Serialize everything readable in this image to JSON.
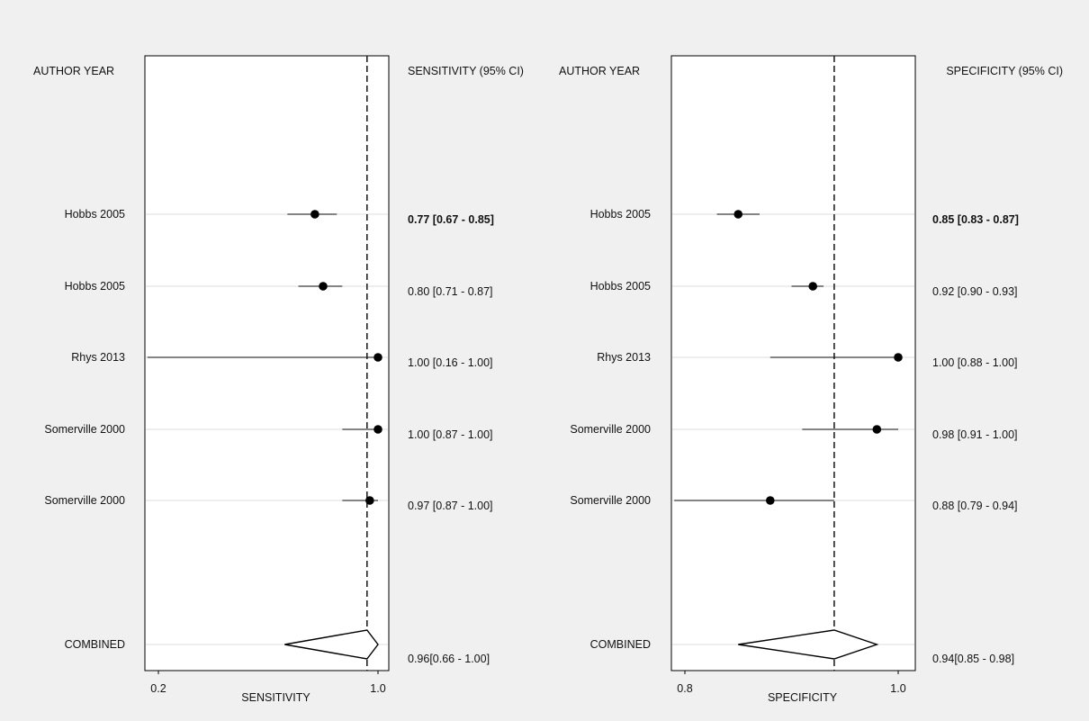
{
  "chart_data": [
    {
      "type": "forest",
      "name": "sensitivity",
      "xlabel": "SENSITIVITY",
      "study_header": "AUTHOR YEAR",
      "estimate_header": "SENSITIVITY (95% CI)",
      "xlim": [
        0.2,
        1.0
      ],
      "xticks": [
        0.2,
        1.0
      ],
      "xtick_labels": [
        "0.2",
        "1.0"
      ],
      "reference_line": 0.96,
      "studies": [
        {
          "label": "Hobbs 2005",
          "estimate": 0.77,
          "lower": 0.67,
          "upper": 0.85,
          "text": "0.77 [0.67 - 0.85]"
        },
        {
          "label": "Hobbs 2005",
          "estimate": 0.8,
          "lower": 0.71,
          "upper": 0.87,
          "text": "0.80 [0.71 - 0.87]"
        },
        {
          "label": "Rhys 2013",
          "estimate": 1.0,
          "lower": 0.16,
          "upper": 1.0,
          "text": "1.00 [0.16 - 1.00]"
        },
        {
          "label": "Somerville 2000",
          "estimate": 1.0,
          "lower": 0.87,
          "upper": 1.0,
          "text": "1.00 [0.87 - 1.00]"
        },
        {
          "label": "Somerville 2000",
          "estimate": 0.97,
          "lower": 0.87,
          "upper": 1.0,
          "text": "0.97 [0.87 - 1.00]"
        }
      ],
      "combined": {
        "label": "COMBINED",
        "estimate": 0.96,
        "lower": 0.66,
        "upper": 1.0,
        "text": "0.96[0.66 - 1.00]"
      }
    },
    {
      "type": "forest",
      "name": "specificity",
      "xlabel": "SPECIFICITY",
      "study_header": "AUTHOR YEAR",
      "estimate_header": "SPECIFICITY (95% CI)",
      "xlim": [
        0.8,
        1.0
      ],
      "xticks": [
        0.8,
        1.0
      ],
      "xtick_labels": [
        "0.8",
        "1.0"
      ],
      "reference_line": 0.94,
      "studies": [
        {
          "label": "Hobbs 2005",
          "estimate": 0.85,
          "lower": 0.83,
          "upper": 0.87,
          "text": "0.85 [0.83 - 0.87]"
        },
        {
          "label": "Hobbs 2005",
          "estimate": 0.92,
          "lower": 0.9,
          "upper": 0.93,
          "text": "0.92 [0.90 - 0.93]"
        },
        {
          "label": "Rhys 2013",
          "estimate": 1.0,
          "lower": 0.88,
          "upper": 1.0,
          "text": "1.00 [0.88 - 1.00]"
        },
        {
          "label": "Somerville 2000",
          "estimate": 0.98,
          "lower": 0.91,
          "upper": 1.0,
          "text": "0.98 [0.91 - 1.00]"
        },
        {
          "label": "Somerville 2000",
          "estimate": 0.88,
          "lower": 0.79,
          "upper": 0.94,
          "text": "0.88 [0.79 - 0.94]"
        }
      ],
      "combined": {
        "label": "COMBINED",
        "estimate": 0.94,
        "lower": 0.85,
        "upper": 0.98,
        "text": "0.94[0.85 - 0.98]"
      }
    }
  ]
}
